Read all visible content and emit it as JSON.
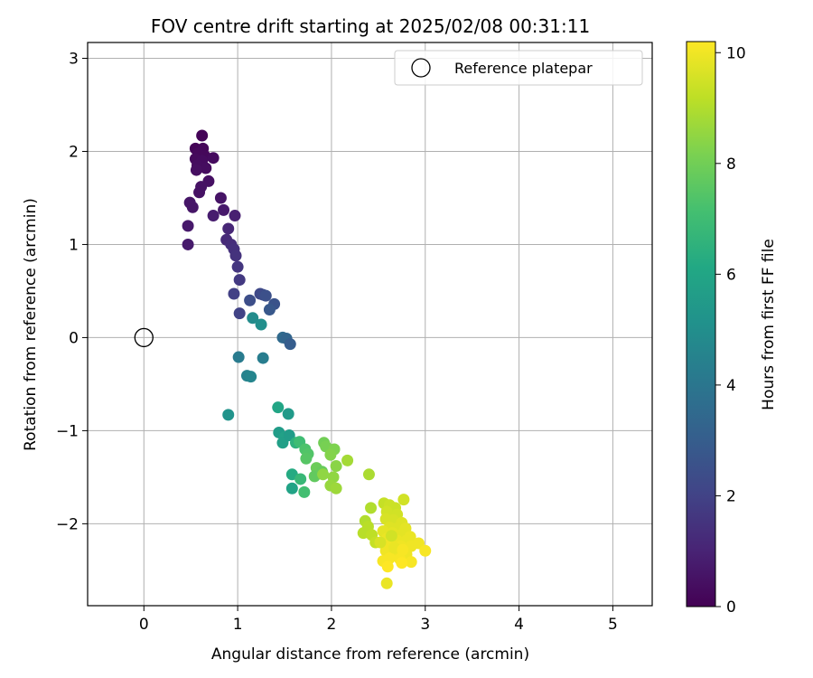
{
  "chart_data": {
    "type": "scatter",
    "title": "FOV centre drift starting at 2025/02/08 00:31:11",
    "xlabel": "Angular distance from reference (arcmin)",
    "ylabel": "Rotation from reference (arcmin)",
    "xlim": [
      -0.6,
      5.42
    ],
    "ylim": [
      -2.88,
      3.17
    ],
    "xticks": [
      0,
      1,
      2,
      3,
      4,
      5
    ],
    "yticks": [
      -2,
      -1,
      0,
      1,
      2,
      3
    ],
    "xtick_labels": [
      "0",
      "1",
      "2",
      "3",
      "4",
      "5"
    ],
    "ytick_labels": [
      "−2",
      "−1",
      "0",
      "1",
      "2",
      "3"
    ],
    "grid": true,
    "legend": {
      "placement": "top-right",
      "entries": [
        {
          "label": "Reference platepar",
          "marker": "open-circle"
        }
      ]
    },
    "colorbar": {
      "label": "Hours from first FF file",
      "range": [
        0,
        10.2
      ],
      "ticks": [
        0,
        2,
        4,
        6,
        8,
        10
      ],
      "tick_labels": [
        "0",
        "2",
        "4",
        "6",
        "8",
        "10"
      ],
      "colormap": "viridis"
    },
    "reference_point": {
      "x": 0,
      "y": 0
    },
    "points": [
      [
        0.62,
        2.17,
        0.1
      ],
      [
        0.55,
        2.03,
        0.1
      ],
      [
        0.63,
        2.03,
        0.15
      ],
      [
        0.58,
        1.98,
        0.2
      ],
      [
        0.65,
        1.95,
        0.2
      ],
      [
        0.55,
        1.92,
        0.25
      ],
      [
        0.62,
        1.9,
        0.3
      ],
      [
        0.74,
        1.93,
        0.3
      ],
      [
        0.57,
        1.85,
        0.35
      ],
      [
        0.66,
        1.82,
        0.35
      ],
      [
        0.56,
        1.8,
        0.4
      ],
      [
        0.69,
        1.68,
        0.45
      ],
      [
        0.61,
        1.62,
        0.5
      ],
      [
        0.59,
        1.56,
        0.5
      ],
      [
        0.82,
        1.5,
        0.55
      ],
      [
        0.49,
        1.45,
        0.6
      ],
      [
        0.52,
        1.4,
        0.6
      ],
      [
        0.85,
        1.37,
        0.7
      ],
      [
        0.74,
        1.31,
        0.8
      ],
      [
        0.97,
        1.31,
        0.9
      ],
      [
        0.47,
        1.2,
        0.7
      ],
      [
        0.9,
        1.17,
        1.1
      ],
      [
        0.47,
        1.0,
        0.75
      ],
      [
        0.88,
        1.05,
        1.2
      ],
      [
        0.93,
        1.0,
        1.3
      ],
      [
        0.96,
        0.95,
        1.4
      ],
      [
        0.98,
        0.88,
        1.5
      ],
      [
        1.0,
        0.76,
        1.6
      ],
      [
        1.02,
        0.62,
        1.7
      ],
      [
        0.96,
        0.47,
        1.9
      ],
      [
        1.13,
        0.4,
        2.4
      ],
      [
        1.24,
        0.47,
        2.2
      ],
      [
        1.27,
        0.46,
        2.3
      ],
      [
        1.3,
        0.45,
        2.5
      ],
      [
        1.39,
        0.36,
        2.6
      ],
      [
        1.34,
        0.3,
        2.8
      ],
      [
        1.02,
        0.26,
        2.0
      ],
      [
        1.16,
        0.21,
        4.9
      ],
      [
        1.25,
        0.14,
        5.0
      ],
      [
        1.48,
        0.0,
        3.5
      ],
      [
        1.52,
        -0.01,
        3.3
      ],
      [
        1.56,
        -0.07,
        3.0
      ],
      [
        1.01,
        -0.21,
        4.2
      ],
      [
        1.27,
        -0.22,
        4.3
      ],
      [
        1.1,
        -0.41,
        4.5
      ],
      [
        1.14,
        -0.42,
        4.6
      ],
      [
        0.9,
        -0.83,
        5.2
      ],
      [
        1.43,
        -0.75,
        6.0
      ],
      [
        1.54,
        -0.82,
        5.5
      ],
      [
        1.44,
        -1.02,
        5.6
      ],
      [
        1.5,
        -1.07,
        5.8
      ],
      [
        1.48,
        -1.13,
        5.7
      ],
      [
        1.55,
        -1.05,
        5.6
      ],
      [
        1.62,
        -1.13,
        6.5
      ],
      [
        1.66,
        -1.12,
        7.0
      ],
      [
        1.72,
        -1.2,
        7.3
      ],
      [
        1.75,
        -1.25,
        7.4
      ],
      [
        1.73,
        -1.3,
        7.5
      ],
      [
        1.58,
        -1.47,
        6.2
      ],
      [
        1.67,
        -1.52,
        6.8
      ],
      [
        1.58,
        -1.62,
        5.9
      ],
      [
        1.71,
        -1.66,
        7.1
      ],
      [
        1.84,
        -1.4,
        7.9
      ],
      [
        1.82,
        -1.49,
        7.7
      ],
      [
        1.9,
        -1.44,
        7.8
      ],
      [
        1.92,
        -1.13,
        8.0
      ],
      [
        1.94,
        -1.17,
        8.1
      ],
      [
        2.03,
        -1.2,
        8.2
      ],
      [
        1.99,
        -1.26,
        8.3
      ],
      [
        2.05,
        -1.38,
        8.4
      ],
      [
        1.91,
        -1.47,
        8.5
      ],
      [
        2.02,
        -1.5,
        8.5
      ],
      [
        1.99,
        -1.59,
        8.6
      ],
      [
        2.05,
        -1.62,
        8.7
      ],
      [
        2.17,
        -1.32,
        8.8
      ],
      [
        2.4,
        -1.47,
        8.9
      ],
      [
        2.42,
        -1.83,
        9.0
      ],
      [
        2.36,
        -1.97,
        9.0
      ],
      [
        2.39,
        -2.03,
        9.1
      ],
      [
        2.34,
        -2.1,
        9.1
      ],
      [
        2.43,
        -2.12,
        9.2
      ],
      [
        2.47,
        -2.2,
        9.3
      ],
      [
        2.56,
        -1.78,
        9.3
      ],
      [
        2.62,
        -1.8,
        9.4
      ],
      [
        2.68,
        -1.83,
        9.4
      ],
      [
        2.77,
        -1.74,
        9.5
      ],
      [
        2.59,
        -1.87,
        9.5
      ],
      [
        2.7,
        -1.9,
        9.5
      ],
      [
        2.58,
        -1.95,
        9.6
      ],
      [
        2.66,
        -1.96,
        9.6
      ],
      [
        2.75,
        -1.99,
        9.7
      ],
      [
        2.62,
        -2.04,
        9.7
      ],
      [
        2.7,
        -2.05,
        9.7
      ],
      [
        2.79,
        -2.05,
        9.8
      ],
      [
        2.55,
        -2.08,
        9.8
      ],
      [
        2.65,
        -2.1,
        9.8
      ],
      [
        2.74,
        -2.12,
        9.8
      ],
      [
        2.84,
        -2.14,
        9.9
      ],
      [
        2.59,
        -2.16,
        9.9
      ],
      [
        2.7,
        -2.18,
        9.9
      ],
      [
        2.8,
        -2.18,
        9.9
      ],
      [
        2.62,
        -2.22,
        10.0
      ],
      [
        2.74,
        -2.24,
        10.0
      ],
      [
        2.85,
        -2.24,
        10.0
      ],
      [
        2.93,
        -2.21,
        10.0
      ],
      [
        3.0,
        -2.29,
        10.1
      ],
      [
        2.58,
        -2.29,
        10.0
      ],
      [
        2.69,
        -2.31,
        10.0
      ],
      [
        2.8,
        -2.33,
        10.0
      ],
      [
        2.62,
        -2.37,
        10.1
      ],
      [
        2.73,
        -2.38,
        10.1
      ],
      [
        2.55,
        -2.4,
        10.1
      ],
      [
        2.85,
        -2.41,
        10.1
      ],
      [
        2.75,
        -2.42,
        10.2
      ],
      [
        2.6,
        -2.46,
        10.2
      ],
      [
        2.59,
        -2.64,
        9.9
      ],
      [
        2.52,
        -2.2,
        9.6
      ],
      [
        2.67,
        -2.26,
        9.9
      ],
      [
        2.76,
        -2.28,
        10.1
      ],
      [
        2.64,
        -2.13,
        9.5
      ]
    ]
  }
}
